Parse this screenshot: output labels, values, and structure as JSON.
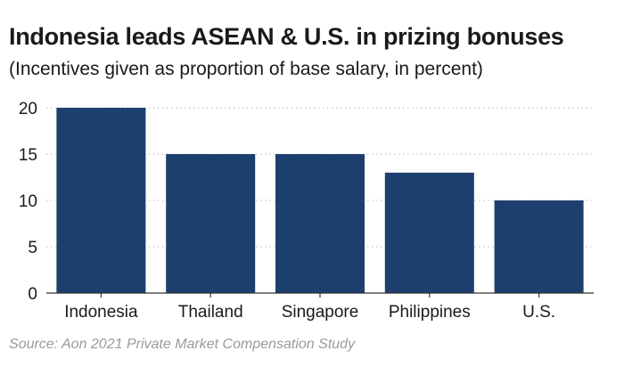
{
  "chart_data": {
    "type": "bar",
    "title": "Indonesia leads ASEAN & U.S. in prizing bonuses",
    "subtitle": "(Incentives given as proportion of base salary, in percent)",
    "categories": [
      "Indonesia",
      "Thailand",
      "Singapore",
      "Philippines",
      "U.S."
    ],
    "values": [
      20,
      15,
      15,
      13,
      10
    ],
    "yticks": [
      0,
      5,
      10,
      15,
      20
    ],
    "ylim": [
      0,
      20
    ],
    "xlabel": "",
    "ylabel": "",
    "grid": "horizontal-dotted",
    "legend": "none",
    "bar_color": "#1c3f6e",
    "source": "Source: Aon 2021 Private Market Compensation Study"
  }
}
